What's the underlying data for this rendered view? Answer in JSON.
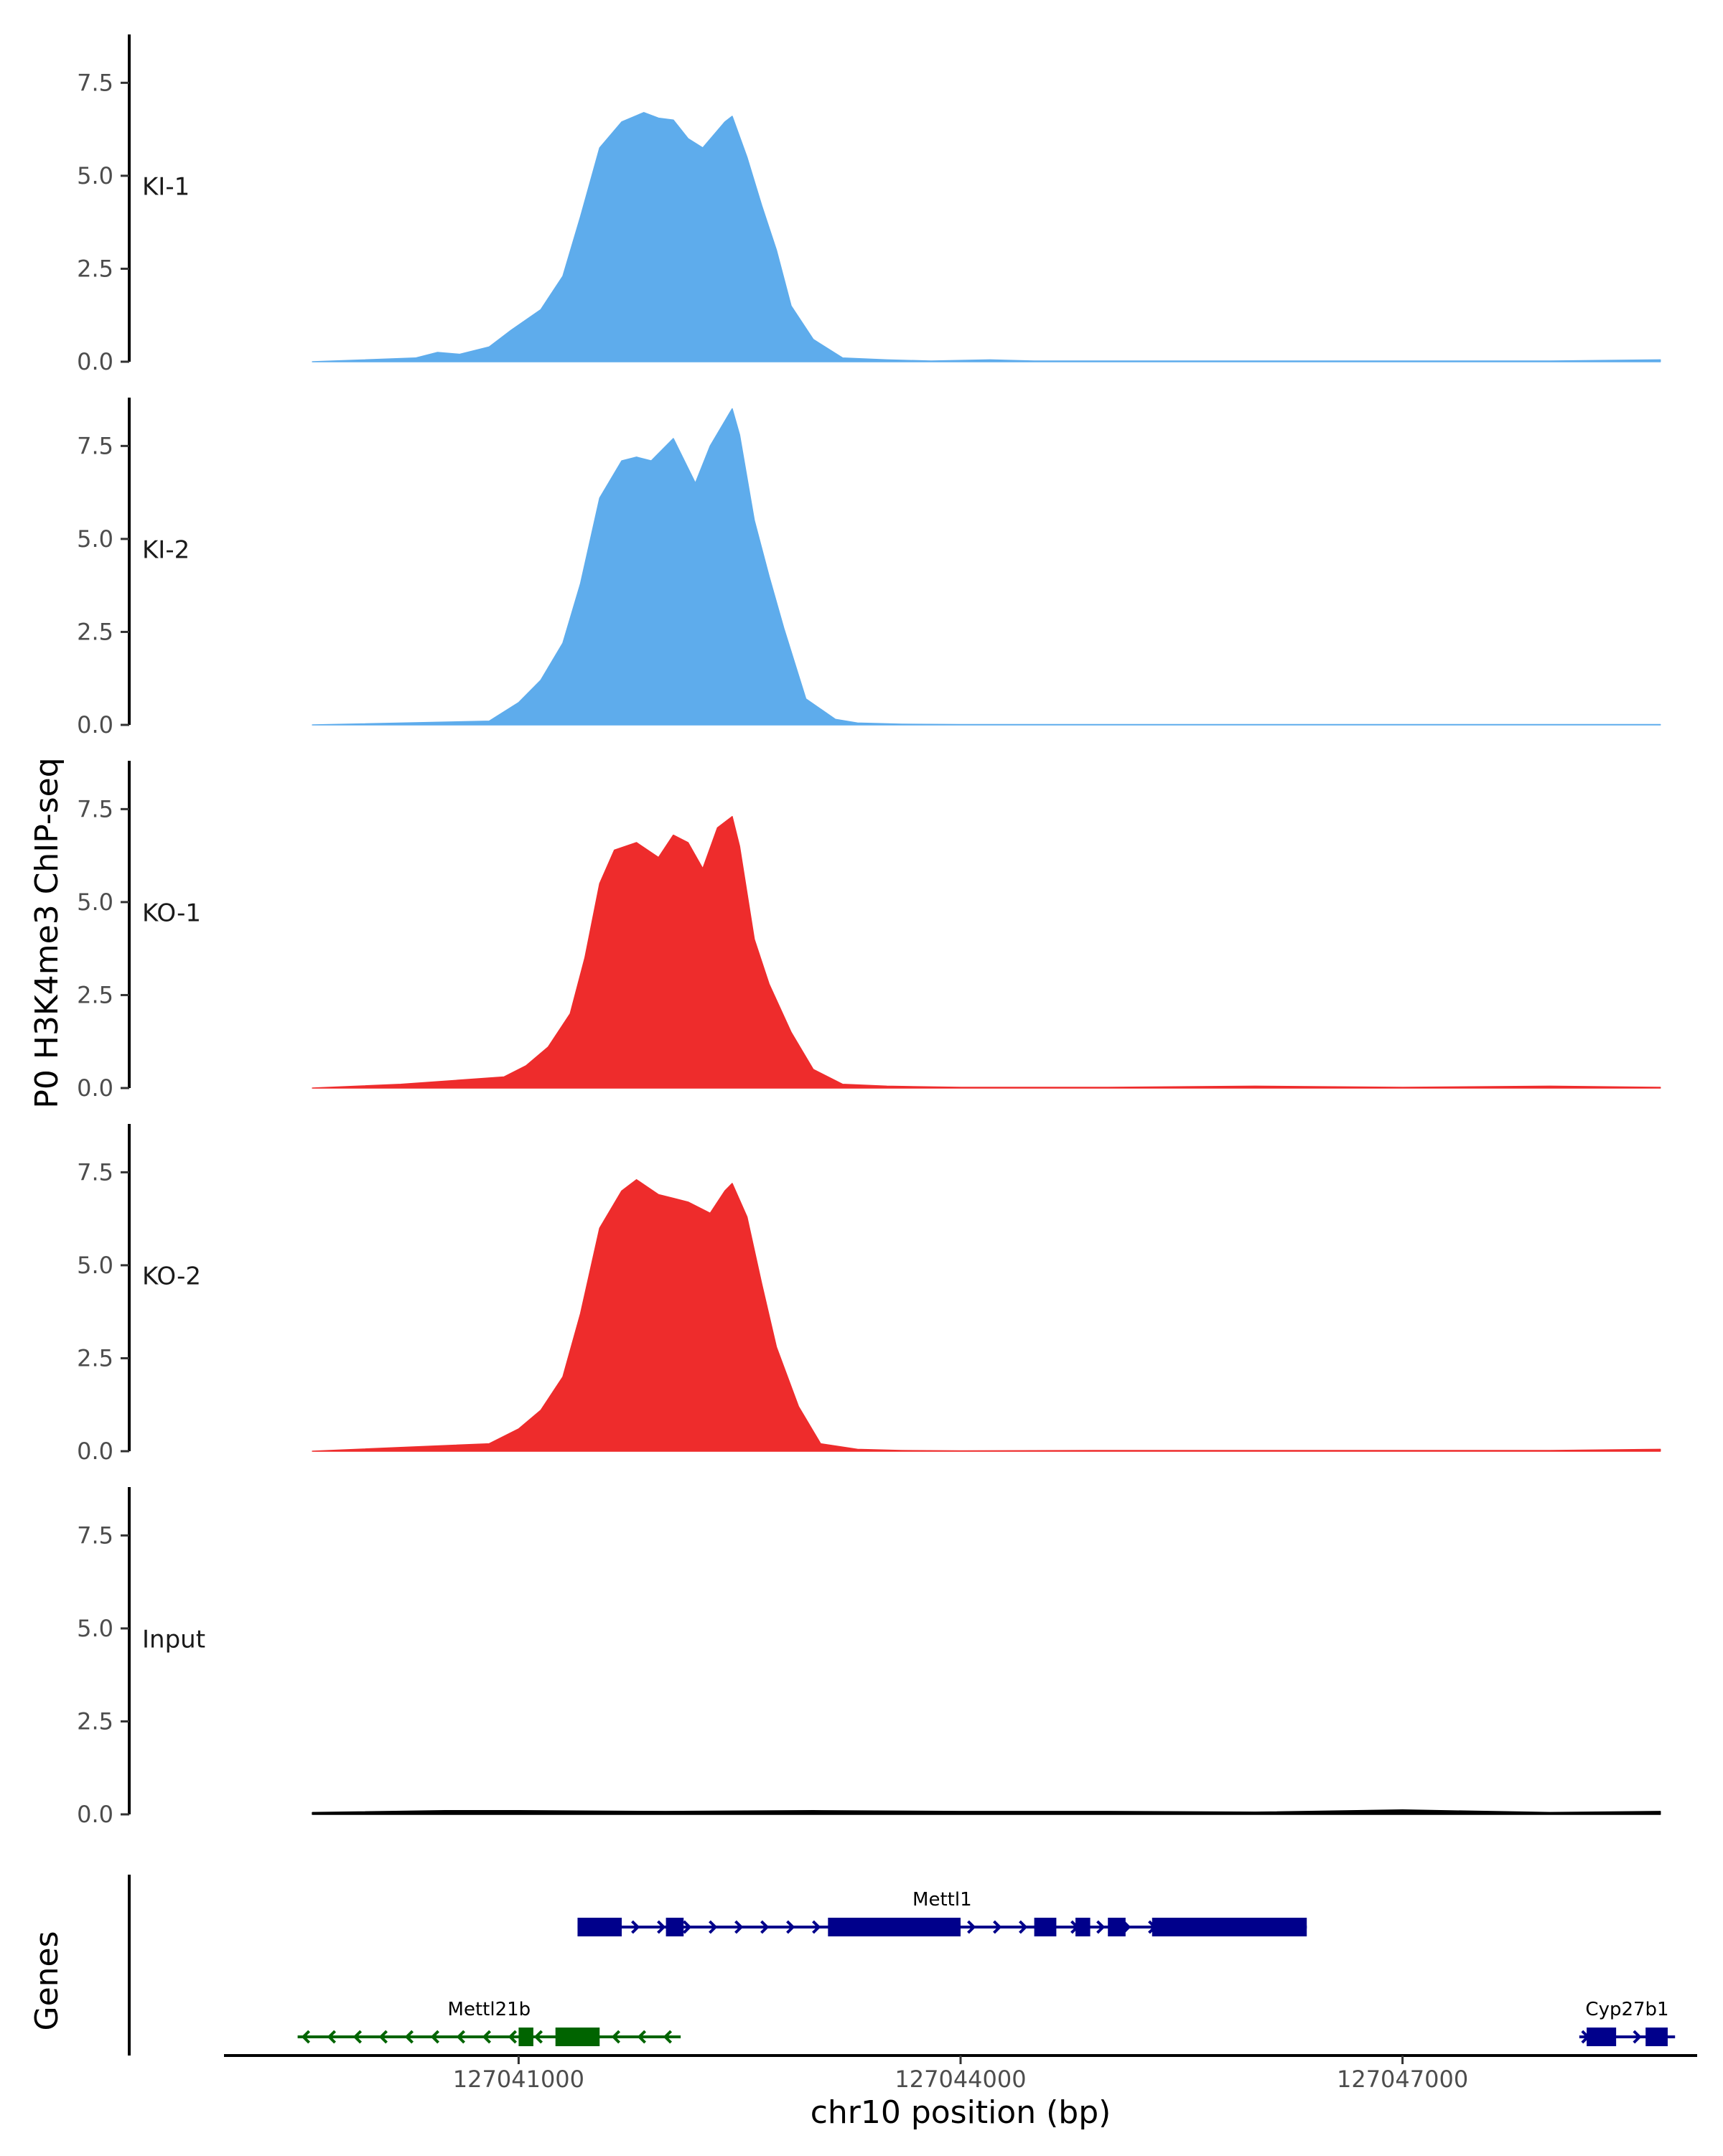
{
  "chart_data": {
    "type": "area",
    "ylabel": "P0 H3K4me3 ChIP-seq",
    "xlabel": "chr10 position (bp)",
    "gene_track_label": "Genes",
    "ylim": [
      0,
      8.8
    ],
    "yticks": [
      0.0,
      2.5,
      5.0,
      7.5
    ],
    "ytick_labels": [
      "0.0",
      "2.5",
      "5.0",
      "7.5"
    ],
    "xlim": [
      127039000,
      127049000
    ],
    "xticks": [
      127041000,
      127044000,
      127047000
    ],
    "xtick_labels": [
      "127041000",
      "127044000",
      "127047000"
    ],
    "series": [
      {
        "name": "KI-1",
        "color": "#5eacec",
        "x": [
          127039600,
          127040300,
          127040450,
          127040600,
          127040800,
          127040950,
          127041150,
          127041300,
          127041420,
          127041550,
          127041700,
          127041850,
          127041950,
          127042050,
          127042150,
          127042250,
          127042400,
          127042450,
          127042550,
          127042650,
          127042750,
          127042850,
          127043000,
          127043200,
          127043500,
          127043800,
          127044200,
          127044500,
          127045000,
          127046000,
          127047000,
          127048000,
          127048750
        ],
        "y": [
          0.0,
          0.1,
          0.25,
          0.2,
          0.4,
          0.85,
          1.4,
          2.3,
          3.9,
          5.75,
          6.45,
          6.7,
          6.55,
          6.5,
          6.0,
          5.75,
          6.45,
          6.6,
          5.5,
          4.2,
          3.0,
          1.5,
          0.6,
          0.1,
          0.05,
          0.02,
          0.05,
          0.02,
          0.02,
          0.02,
          0.02,
          0.02,
          0.05
        ]
      },
      {
        "name": "KI-2",
        "color": "#5eacec",
        "x": [
          127039600,
          127040800,
          127041000,
          127041150,
          127041300,
          127041420,
          127041550,
          127041700,
          127041800,
          127041900,
          127042050,
          127042200,
          127042300,
          127042450,
          127042500,
          127042600,
          127042700,
          127042800,
          127042950,
          127043150,
          127043300,
          127043600,
          127044000,
          127045000,
          127046000,
          127047000,
          127048000,
          127048750
        ],
        "y": [
          0.0,
          0.1,
          0.6,
          1.2,
          2.2,
          3.8,
          6.1,
          7.1,
          7.2,
          7.1,
          7.7,
          6.5,
          7.5,
          8.5,
          7.8,
          5.5,
          4.0,
          2.6,
          0.7,
          0.15,
          0.05,
          0.02,
          0.01,
          0.01,
          0.01,
          0.01,
          0.01,
          0.01
        ]
      },
      {
        "name": "KO-1",
        "color": "#ee2c2c",
        "x": [
          127039600,
          127040200,
          127040900,
          127041050,
          127041200,
          127041350,
          127041450,
          127041550,
          127041650,
          127041800,
          127041950,
          127042050,
          127042150,
          127042250,
          127042350,
          127042450,
          127042500,
          127042600,
          127042700,
          127042850,
          127043000,
          127043200,
          127043500,
          127044000,
          127045000,
          127046000,
          127047000,
          127048000,
          127048750
        ],
        "y": [
          0.0,
          0.1,
          0.3,
          0.6,
          1.1,
          2.0,
          3.5,
          5.5,
          6.4,
          6.6,
          6.2,
          6.8,
          6.6,
          5.9,
          7.0,
          7.3,
          6.5,
          4.0,
          2.8,
          1.5,
          0.5,
          0.1,
          0.05,
          0.02,
          0.02,
          0.05,
          0.02,
          0.05,
          0.02
        ]
      },
      {
        "name": "KO-2",
        "color": "#ee2c2c",
        "x": [
          127039600,
          127040200,
          127040800,
          127041000,
          127041150,
          127041300,
          127041420,
          127041550,
          127041700,
          127041800,
          127041950,
          127042050,
          127042150,
          127042300,
          127042400,
          127042450,
          127042550,
          127042650,
          127042750,
          127042900,
          127043050,
          127043300,
          127043600,
          127044000,
          127045000,
          127046000,
          127047000,
          127048000,
          127048750
        ],
        "y": [
          0.0,
          0.1,
          0.2,
          0.6,
          1.1,
          2.0,
          3.7,
          6.0,
          7.0,
          7.3,
          6.9,
          6.8,
          6.7,
          6.4,
          7.0,
          7.2,
          6.3,
          4.5,
          2.8,
          1.2,
          0.2,
          0.05,
          0.02,
          0.01,
          0.02,
          0.02,
          0.02,
          0.02,
          0.05
        ]
      },
      {
        "name": "Input",
        "color": "#000000",
        "x": [
          127039600,
          127040500,
          127041000,
          127042000,
          127043000,
          127044000,
          127045000,
          127046000,
          127047000,
          127048000,
          127048750
        ],
        "y": [
          0.05,
          0.1,
          0.1,
          0.08,
          0.1,
          0.08,
          0.08,
          0.06,
          0.12,
          0.05,
          0.08
        ]
      }
    ],
    "genes": [
      {
        "name": "Mettl1",
        "strand": "+",
        "color": "#00008b",
        "row": 1,
        "start": 127041400,
        "end": 127046350,
        "exons": [
          [
            127041400,
            127041700
          ],
          [
            127042000,
            127042120
          ],
          [
            127043100,
            127044000
          ],
          [
            127044500,
            127044650
          ],
          [
            127044780,
            127044880
          ],
          [
            127045000,
            127045120
          ],
          [
            127045300,
            127046350
          ]
        ]
      },
      {
        "name": "Mettl21b",
        "strand": "-",
        "color": "#006400",
        "row": 2,
        "start": 127039500,
        "end": 127042100,
        "exons": [
          [
            127041000,
            127041100
          ],
          [
            127041250,
            127041550
          ]
        ]
      },
      {
        "name": "Cyp27b1",
        "strand": "+",
        "color": "#00008b",
        "row": 2,
        "start": 127048200,
        "end": 127048850,
        "exons": [
          [
            127048250,
            127048450
          ],
          [
            127048650,
            127048800
          ]
        ]
      }
    ]
  }
}
